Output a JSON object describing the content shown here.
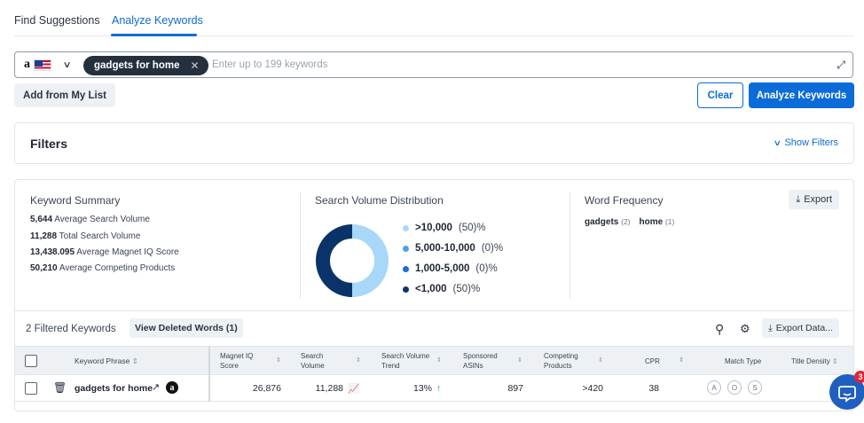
{
  "tabs": [
    {
      "label": "Find Suggestions",
      "active": false
    },
    {
      "label": "Analyze Keywords",
      "active": true
    }
  ],
  "keyword_input": {
    "marketplace": "amazon-us",
    "chips": [
      "gadgets for home"
    ],
    "placeholder": "Enter up to 199 keywords"
  },
  "buttons": {
    "add_from_list": "Add from My List",
    "clear": "Clear",
    "analyze": "Analyze Keywords"
  },
  "filters": {
    "title": "Filters",
    "toggle": "Show Filters"
  },
  "keyword_summary": {
    "title": "Keyword Summary",
    "rows": [
      {
        "value": "5,644",
        "label": "Average Search Volume"
      },
      {
        "value": "11,288",
        "label": "Total Search Volume"
      },
      {
        "value": "13,438.095",
        "label": "Average Magnet IQ Score"
      },
      {
        "value": "50,210",
        "label": "Average Competing Products"
      }
    ]
  },
  "distribution": {
    "title": "Search Volume Distribution",
    "items": [
      {
        "label": ">10,000",
        "pct": "(50)%",
        "color": "#a8d8f8",
        "share": 50
      },
      {
        "label": "5,000-10,000",
        "pct": "(0)%",
        "color": "#4aa3ec",
        "share": 0
      },
      {
        "label": "1,000-5,000",
        "pct": "(0)%",
        "color": "#1a6fd6",
        "share": 0
      },
      {
        "label": "<1,000",
        "pct": "(50)%",
        "color": "#0a3469",
        "share": 50
      }
    ]
  },
  "word_frequency": {
    "title": "Word Frequency",
    "export": "Export",
    "words": [
      {
        "word": "gadgets",
        "count": "(2)"
      },
      {
        "word": "home",
        "count": "(1)"
      }
    ]
  },
  "table_toolbar": {
    "filtered": "2 Filtered Keywords",
    "view_deleted": "View Deleted Words (1)",
    "export": "Export Data..."
  },
  "table": {
    "headers": {
      "phrase": "Keyword Phrase",
      "miq1": "Magnet IQ",
      "miq2": "Score",
      "sv1": "Search",
      "sv2": "Volume",
      "svt1": "Search Volume",
      "svt2": "Trend",
      "sa1": "Sponsored",
      "sa2": "ASINs",
      "cp1": "Competing",
      "cp2": "Products",
      "cpr": "CPR",
      "match": "Match Type",
      "density": "Title Density"
    },
    "row": {
      "phrase": "gadgets for home",
      "miq": "26,876",
      "sv": "11,288",
      "trend": "13%",
      "sponsored": "897",
      "competing": ">420",
      "cpr": "38",
      "match": [
        "A",
        "O",
        "S"
      ]
    }
  },
  "chat": {
    "badge": "3"
  }
}
